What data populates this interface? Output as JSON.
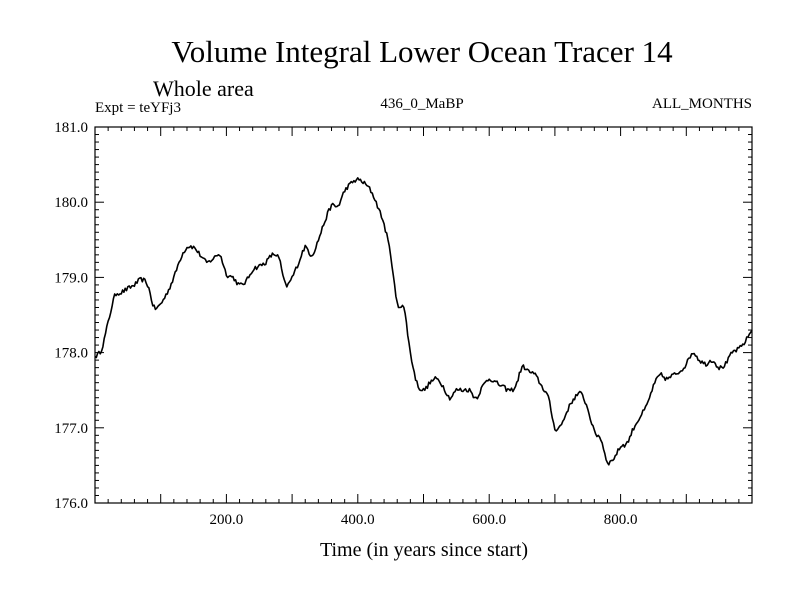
{
  "chart_data": {
    "type": "line",
    "title": "Volume Integral Lower Ocean Tracer 14",
    "subtitle": "Whole area",
    "left_label": "Expt = teYFj3",
    "center_label": "436_0_MaBP",
    "right_label": "ALL_MONTHS",
    "xlabel": "Time (in years since start)",
    "ylabel": "",
    "xlim": [
      0,
      1000
    ],
    "ylim": [
      176.0,
      181.0
    ],
    "x_ticks": [
      200,
      400,
      600,
      800
    ],
    "x_tick_labels": [
      "200.0",
      "400.0",
      "600.0",
      "800.0"
    ],
    "y_ticks": [
      176,
      177,
      178,
      179,
      180,
      181
    ],
    "y_tick_labels": [
      "176.0",
      "177.0",
      "178.0",
      "179.0",
      "180.0",
      "181.0"
    ],
    "grid": false,
    "series": [
      {
        "name": "Lower Ocean Tracer 14",
        "x": [
          0,
          10,
          20,
          30,
          40,
          50,
          60,
          70,
          80,
          90,
          100,
          110,
          120,
          130,
          140,
          150,
          160,
          170,
          180,
          190,
          200,
          210,
          220,
          230,
          240,
          250,
          260,
          270,
          280,
          290,
          300,
          310,
          320,
          330,
          340,
          350,
          360,
          370,
          380,
          390,
          400,
          410,
          420,
          430,
          440,
          450,
          460,
          470,
          480,
          490,
          500,
          510,
          520,
          530,
          540,
          550,
          560,
          570,
          580,
          590,
          600,
          610,
          620,
          630,
          640,
          650,
          660,
          670,
          680,
          690,
          700,
          710,
          720,
          730,
          740,
          750,
          760,
          770,
          780,
          790,
          800,
          810,
          820,
          830,
          840,
          850,
          860,
          870,
          880,
          890,
          900,
          910,
          920,
          930,
          940,
          950,
          960,
          970,
          980,
          990,
          1000
        ],
        "values": [
          177.95,
          178.05,
          178.4,
          178.75,
          178.8,
          178.85,
          178.9,
          178.97,
          178.9,
          178.6,
          178.65,
          178.8,
          179.0,
          179.25,
          179.4,
          179.4,
          179.3,
          179.2,
          179.25,
          179.3,
          179.05,
          179.0,
          178.9,
          178.95,
          179.1,
          179.15,
          179.2,
          179.3,
          179.25,
          178.9,
          179.0,
          179.2,
          179.4,
          179.3,
          179.5,
          179.75,
          179.95,
          179.95,
          180.15,
          180.25,
          180.3,
          180.25,
          180.15,
          179.95,
          179.7,
          179.3,
          178.65,
          178.6,
          178.0,
          177.6,
          177.5,
          177.6,
          177.65,
          177.55,
          177.4,
          177.5,
          177.5,
          177.5,
          177.4,
          177.55,
          177.65,
          177.6,
          177.55,
          177.5,
          177.55,
          177.8,
          177.75,
          177.7,
          177.55,
          177.4,
          177.0,
          177.05,
          177.25,
          177.4,
          177.45,
          177.25,
          176.95,
          176.85,
          176.55,
          176.6,
          176.75,
          176.8,
          177.0,
          177.15,
          177.3,
          177.55,
          177.7,
          177.65,
          177.7,
          177.75,
          177.85,
          178.0,
          177.9,
          177.85,
          177.9,
          177.8,
          177.85,
          178.0,
          178.05,
          178.15,
          178.3
        ]
      }
    ]
  }
}
